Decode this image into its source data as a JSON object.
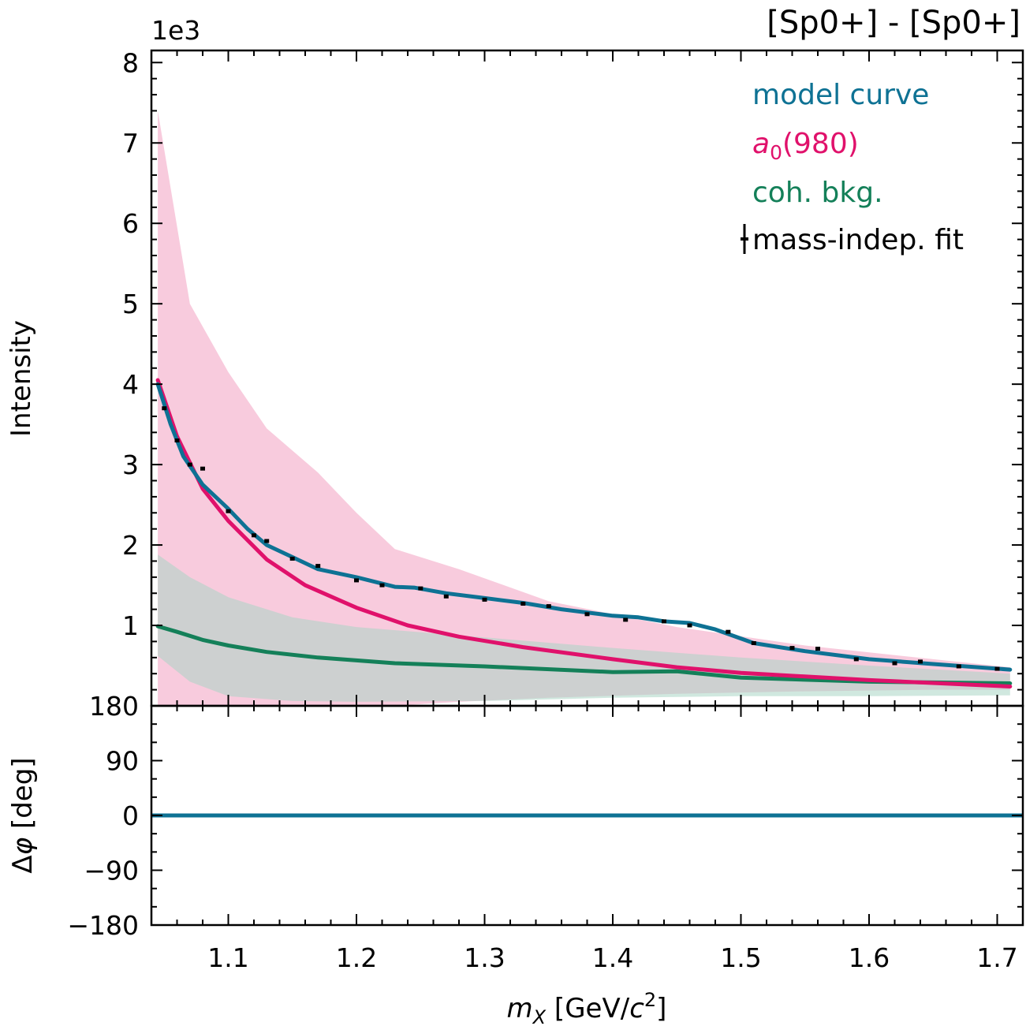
{
  "chart_data": {
    "type": "line",
    "title": "[Sp0+] - [Sp0+]",
    "xlabel": "m_X [GeV/c^2]",
    "xlim": [
      1.04,
      1.72
    ],
    "xticks": [
      1.1,
      1.2,
      1.3,
      1.4,
      1.5,
      1.6,
      1.7
    ],
    "xtick_labels": [
      "1.1",
      "1.2",
      "1.3",
      "1.4",
      "1.5",
      "1.6",
      "1.7"
    ],
    "intensity_panel": {
      "ylabel": "Intensity",
      "y_multiplier": "1e3",
      "ylim": [
        0,
        8.15
      ],
      "yticks": [
        1,
        2,
        3,
        4,
        5,
        6,
        7,
        8
      ],
      "ytick_labels": [
        "1",
        "2",
        "3",
        "4",
        "5",
        "6",
        "7",
        "8"
      ],
      "legend_position": "top-right",
      "legend": [
        "model curve",
        "a0(980)",
        "coh. bkg.",
        "mass-indep. fit"
      ],
      "series": [
        {
          "name": "model curve",
          "color": "#0e7294",
          "x": [
            1.045,
            1.055,
            1.065,
            1.08,
            1.1,
            1.115,
            1.13,
            1.15,
            1.17,
            1.2,
            1.23,
            1.245,
            1.27,
            1.3,
            1.33,
            1.36,
            1.4,
            1.42,
            1.44,
            1.46,
            1.48,
            1.51,
            1.55,
            1.6,
            1.65,
            1.71
          ],
          "y": [
            4.0,
            3.5,
            3.1,
            2.75,
            2.45,
            2.2,
            2.0,
            1.85,
            1.7,
            1.6,
            1.48,
            1.47,
            1.4,
            1.34,
            1.28,
            1.2,
            1.12,
            1.1,
            1.05,
            1.03,
            0.95,
            0.78,
            0.68,
            0.58,
            0.52,
            0.45
          ]
        },
        {
          "name": "a0(980)",
          "color": "#e0116b",
          "x": [
            1.045,
            1.06,
            1.08,
            1.1,
            1.13,
            1.16,
            1.2,
            1.24,
            1.28,
            1.33,
            1.4,
            1.45,
            1.5,
            1.6,
            1.71
          ],
          "y": [
            4.05,
            3.35,
            2.7,
            2.3,
            1.82,
            1.5,
            1.22,
            1.0,
            0.86,
            0.73,
            0.58,
            0.48,
            0.41,
            0.32,
            0.24
          ]
        },
        {
          "name": "coh. bkg.",
          "color": "#148059",
          "x": [
            1.045,
            1.06,
            1.08,
            1.1,
            1.13,
            1.17,
            1.23,
            1.3,
            1.4,
            1.45,
            1.5,
            1.6,
            1.71
          ],
          "y": [
            0.99,
            0.92,
            0.82,
            0.75,
            0.67,
            0.6,
            0.53,
            0.49,
            0.42,
            0.43,
            0.35,
            0.3,
            0.28
          ]
        }
      ],
      "bands": [
        {
          "name": "a0(980) uncertainty",
          "color": "#f5b7d0",
          "x": [
            1.045,
            1.07,
            1.1,
            1.13,
            1.17,
            1.2,
            1.23,
            1.28,
            1.35,
            1.45,
            1.55,
            1.65,
            1.71
          ],
          "upper": [
            7.4,
            5.0,
            4.15,
            3.45,
            2.9,
            2.4,
            1.95,
            1.7,
            1.3,
            0.98,
            0.75,
            0.58,
            0.48
          ],
          "lower": [
            0.0,
            0.0,
            0.0,
            0.0,
            0.0,
            0.0,
            0.0,
            0.05,
            0.1,
            0.15,
            0.18,
            0.2,
            0.2
          ]
        },
        {
          "name": "coh. bkg. uncertainty",
          "color": "#a9d6c5",
          "x": [
            1.045,
            1.07,
            1.1,
            1.15,
            1.2,
            1.3,
            1.4,
            1.5,
            1.6,
            1.71
          ],
          "upper": [
            1.88,
            1.6,
            1.35,
            1.1,
            0.98,
            0.85,
            0.72,
            0.6,
            0.5,
            0.4
          ],
          "lower": [
            0.62,
            0.3,
            0.12,
            0.06,
            0.05,
            0.06,
            0.1,
            0.12,
            0.12,
            0.13
          ]
        }
      ],
      "points": {
        "name": "mass-indep. fit",
        "x": [
          1.05,
          1.06,
          1.07,
          1.08,
          1.1,
          1.12,
          1.13,
          1.15,
          1.17,
          1.2,
          1.22,
          1.25,
          1.27,
          1.3,
          1.33,
          1.35,
          1.38,
          1.41,
          1.44,
          1.46,
          1.49,
          1.51,
          1.54,
          1.56,
          1.59,
          1.62,
          1.64,
          1.67,
          1.7
        ],
        "y": [
          3.7,
          3.3,
          3.0,
          2.95,
          2.42,
          2.12,
          2.05,
          1.83,
          1.74,
          1.56,
          1.5,
          1.46,
          1.36,
          1.32,
          1.27,
          1.24,
          1.14,
          1.07,
          1.05,
          1.0,
          0.92,
          0.78,
          0.72,
          0.71,
          0.58,
          0.53,
          0.55,
          0.49,
          0.46
        ]
      }
    },
    "phase_panel": {
      "ylabel": "Δφ [deg]",
      "ylim": [
        -180,
        180
      ],
      "yticks": [
        -180,
        -90,
        0,
        90,
        180
      ],
      "ytick_labels": [
        "−180",
        "−90",
        "0",
        "90",
        "180"
      ],
      "series": [
        {
          "name": "model curve",
          "color": "#0e7294",
          "x": [
            1.04,
            1.72
          ],
          "y": [
            0,
            0
          ]
        }
      ]
    }
  }
}
